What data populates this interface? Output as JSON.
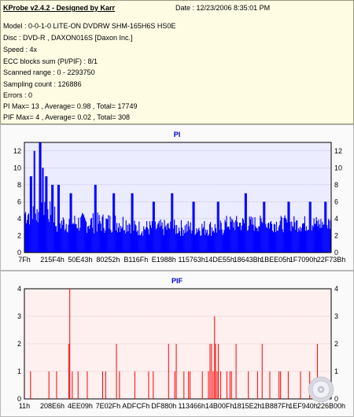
{
  "header": {
    "title": "KProbe v2.4.2 - Designed by Karr",
    "date": "Date : 12/23/2006 8:35:01 PM",
    "lines": [
      "Model : 0-0-1-0 LITE-ON DVDRW SHM-165H6S HS0E",
      "Disc : DVD-R , DAXON016S [Daxon Inc.]",
      "Speed : 4x",
      "ECC blocks sum (PI/PIF) : 8/1",
      "Scanned range : 0 - 2293750",
      "Sampling count : 126886",
      "Errors : 0",
      "PI Max= 13 , Average= 0.98 , Total= 17749",
      "PIF Max= 4 , Average= 0.02 , Total= 308"
    ]
  },
  "chart_data": [
    {
      "type": "bar",
      "title": "PI",
      "ylim": [
        0,
        13
      ],
      "yticks": [
        0,
        2,
        4,
        6,
        8,
        10,
        12
      ],
      "xlabels": [
        "7Fh",
        "215F4h",
        "50E43h",
        "80252h",
        "B116Fh",
        "E1988h",
        "115763h",
        "14DE55h",
        "18643Bh",
        "1BEE05h",
        "1F7090h",
        "22F73Bh"
      ],
      "grid": true,
      "colors": {
        "bar": "#0000ff",
        "plot_bg": "#ececff",
        "grid": "#9a9ac8",
        "title": "#0000c8"
      },
      "bins": 400,
      "segments": [
        {
          "start_frac": 0.0,
          "end_frac": 0.1,
          "base": 4.0,
          "spread": 3.0
        },
        {
          "start_frac": 0.1,
          "end_frac": 0.35,
          "base": 3.0,
          "spread": 2.5
        },
        {
          "start_frac": 0.35,
          "end_frac": 0.65,
          "base": 2.5,
          "spread": 2.0
        },
        {
          "start_frac": 0.65,
          "end_frac": 1.0,
          "base": 3.0,
          "spread": 2.0
        }
      ],
      "peaks": [
        {
          "x_frac": 0.02,
          "value": 9
        },
        {
          "x_frac": 0.032,
          "value": 12
        },
        {
          "x_frac": 0.05,
          "value": 13
        },
        {
          "x_frac": 0.058,
          "value": 10
        },
        {
          "x_frac": 0.07,
          "value": 9
        },
        {
          "x_frac": 0.09,
          "value": 8
        },
        {
          "x_frac": 0.11,
          "value": 8
        },
        {
          "x_frac": 0.15,
          "value": 7
        },
        {
          "x_frac": 0.23,
          "value": 8
        },
        {
          "x_frac": 0.29,
          "value": 7
        },
        {
          "x_frac": 0.35,
          "value": 7
        },
        {
          "x_frac": 0.42,
          "value": 6
        },
        {
          "x_frac": 0.48,
          "value": 7
        },
        {
          "x_frac": 0.55,
          "value": 6
        },
        {
          "x_frac": 0.63,
          "value": 6
        },
        {
          "x_frac": 0.72,
          "value": 7
        },
        {
          "x_frac": 0.78,
          "value": 6
        },
        {
          "x_frac": 0.86,
          "value": 6
        },
        {
          "x_frac": 0.93,
          "value": 6
        },
        {
          "x_frac": 0.98,
          "value": 6
        }
      ]
    },
    {
      "type": "bar",
      "title": "PIF",
      "ylim": [
        0,
        4
      ],
      "yticks": [
        0,
        1,
        2,
        3,
        4
      ],
      "xlabels": [
        "11h",
        "208E6h",
        "4EE09h",
        "7E02Fh",
        "ADFCFh",
        "DF880h",
        "113466h",
        "14B00Fh",
        "1815E2h",
        "1B887Fh",
        "1EF940h",
        "226B00h"
      ],
      "grid": true,
      "colors": {
        "bar": "#ff0000",
        "plot_bg": "#fff0f0",
        "grid": "#c8a0a0",
        "title": "#0000c8"
      },
      "spikes": [
        {
          "x_frac": 0.02,
          "value": 1
        },
        {
          "x_frac": 0.08,
          "value": 1
        },
        {
          "x_frac": 0.105,
          "value": 1
        },
        {
          "x_frac": 0.145,
          "value": 2
        },
        {
          "x_frac": 0.148,
          "value": 4
        },
        {
          "x_frac": 0.156,
          "value": 1
        },
        {
          "x_frac": 0.175,
          "value": 1
        },
        {
          "x_frac": 0.205,
          "value": 1
        },
        {
          "x_frac": 0.255,
          "value": 1
        },
        {
          "x_frac": 0.265,
          "value": 1
        },
        {
          "x_frac": 0.3,
          "value": 2
        },
        {
          "x_frac": 0.31,
          "value": 1
        },
        {
          "x_frac": 0.36,
          "value": 1
        },
        {
          "x_frac": 0.405,
          "value": 1
        },
        {
          "x_frac": 0.42,
          "value": 1
        },
        {
          "x_frac": 0.47,
          "value": 2
        },
        {
          "x_frac": 0.49,
          "value": 1
        },
        {
          "x_frac": 0.495,
          "value": 2
        },
        {
          "x_frac": 0.52,
          "value": 1
        },
        {
          "x_frac": 0.535,
          "value": 1
        },
        {
          "x_frac": 0.54,
          "value": 1
        },
        {
          "x_frac": 0.58,
          "value": 1
        },
        {
          "x_frac": 0.6,
          "value": 1
        },
        {
          "x_frac": 0.605,
          "value": 2
        },
        {
          "x_frac": 0.61,
          "value": 2
        },
        {
          "x_frac": 0.615,
          "value": 1
        },
        {
          "x_frac": 0.62,
          "value": 3
        },
        {
          "x_frac": 0.623,
          "value": 2
        },
        {
          "x_frac": 0.628,
          "value": 1
        },
        {
          "x_frac": 0.632,
          "value": 2
        },
        {
          "x_frac": 0.64,
          "value": 1
        },
        {
          "x_frac": 0.66,
          "value": 1
        },
        {
          "x_frac": 0.67,
          "value": 1
        },
        {
          "x_frac": 0.675,
          "value": 1
        },
        {
          "x_frac": 0.69,
          "value": 2
        },
        {
          "x_frac": 0.73,
          "value": 1
        },
        {
          "x_frac": 0.76,
          "value": 1
        },
        {
          "x_frac": 0.775,
          "value": 2
        },
        {
          "x_frac": 0.8,
          "value": 1
        },
        {
          "x_frac": 0.83,
          "value": 1
        },
        {
          "x_frac": 0.835,
          "value": 1
        },
        {
          "x_frac": 0.86,
          "value": 1
        },
        {
          "x_frac": 0.9,
          "value": 1
        },
        {
          "x_frac": 0.93,
          "value": 1
        },
        {
          "x_frac": 0.955,
          "value": 2
        }
      ]
    }
  ]
}
